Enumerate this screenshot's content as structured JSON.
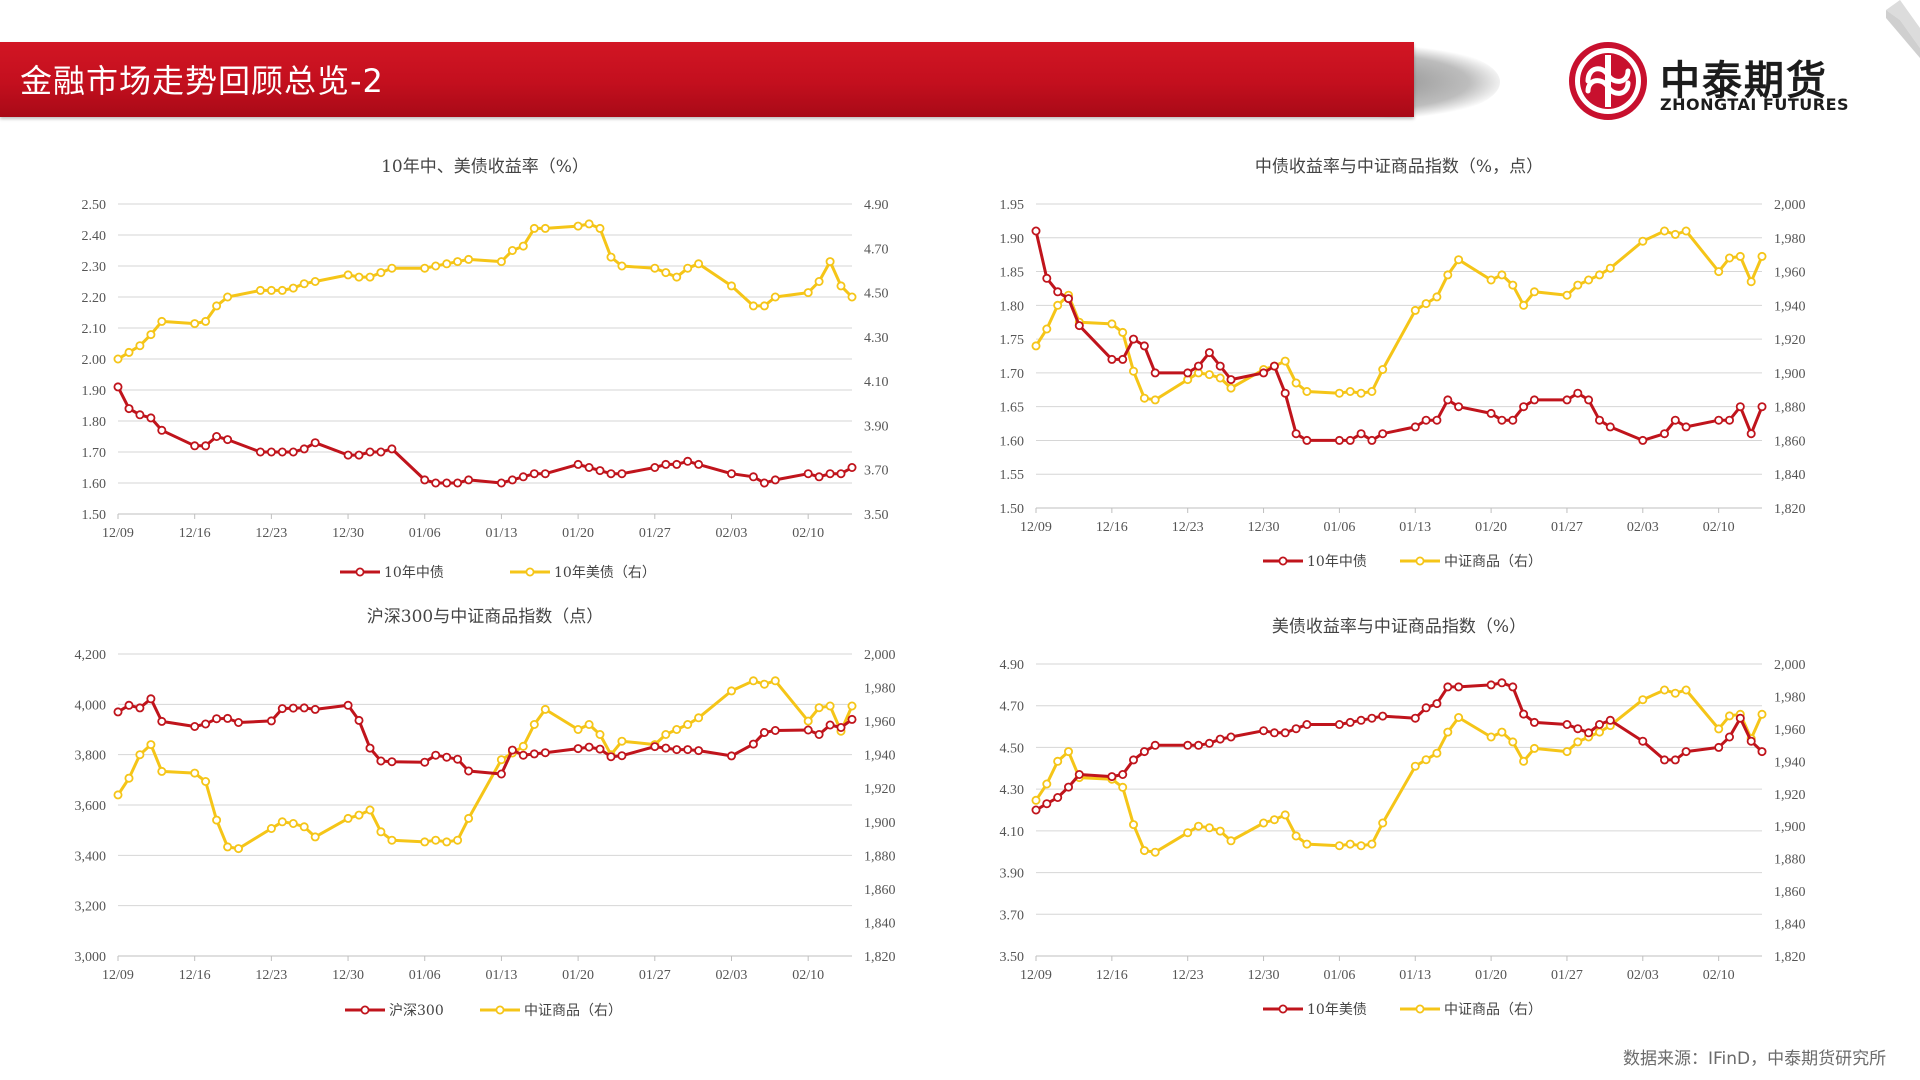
{
  "header": {
    "title": "金融市场走势回顾总览-2"
  },
  "logo": {
    "name_cn": "中泰期货",
    "name_en": "ZHONGTAI FUTURES"
  },
  "source_note": "数据来源：IFinD，中泰期货研究所",
  "colors": {
    "red_series": "#c0141c",
    "yellow_series": "#f5c518",
    "header_red": "#c8101e",
    "logo_red": "#c8102e"
  },
  "chart_data": [
    {
      "type": "line",
      "title": "10年中、美债收益率（%）",
      "x_tick_labels": [
        "12/09",
        "12/16",
        "12/23",
        "12/30",
        "01/06",
        "01/13",
        "01/20",
        "01/27",
        "02/03",
        "02/10"
      ],
      "left_axis": {
        "ylim": [
          1.5,
          2.5
        ],
        "tick_labels": [
          "1.50",
          "1.60",
          "1.70",
          "1.80",
          "1.90",
          "2.00",
          "2.10",
          "2.20",
          "2.30",
          "2.40",
          "2.50"
        ]
      },
      "right_axis": {
        "ylim": [
          3.5,
          4.9
        ],
        "tick_labels": [
          "3.50",
          "3.70",
          "3.90",
          "4.10",
          "4.30",
          "4.50",
          "4.70",
          "4.90"
        ]
      },
      "series": [
        {
          "name": "10年中债",
          "axis": "left",
          "x": [
            0,
            1,
            2,
            3,
            4,
            7,
            8,
            9,
            10,
            13,
            14,
            15,
            16,
            17,
            18,
            21,
            22,
            23,
            24,
            25,
            28,
            29,
            30,
            31,
            32,
            35,
            36,
            37,
            38,
            39,
            42,
            43,
            44,
            45,
            46,
            49,
            50,
            51,
            52,
            53,
            56,
            58,
            59,
            60,
            63,
            64,
            65,
            66,
            67
          ],
          "values": [
            1.91,
            1.84,
            1.82,
            1.81,
            1.77,
            1.72,
            1.72,
            1.75,
            1.74,
            1.7,
            1.7,
            1.7,
            1.7,
            1.71,
            1.73,
            1.69,
            1.69,
            1.7,
            1.7,
            1.71,
            1.61,
            1.6,
            1.6,
            1.6,
            1.61,
            1.6,
            1.61,
            1.62,
            1.63,
            1.63,
            1.66,
            1.65,
            1.64,
            1.63,
            1.63,
            1.65,
            1.66,
            1.66,
            1.67,
            1.66,
            1.63,
            1.62,
            1.6,
            1.61,
            1.63,
            1.62,
            1.63,
            1.63,
            1.65
          ]
        },
        {
          "name": "10年美债（右）",
          "axis": "right",
          "x": [
            0,
            1,
            2,
            3,
            4,
            7,
            8,
            9,
            10,
            13,
            14,
            15,
            16,
            17,
            18,
            21,
            22,
            23,
            24,
            25,
            28,
            29,
            30,
            31,
            32,
            35,
            36,
            37,
            38,
            39,
            42,
            43,
            44,
            45,
            46,
            49,
            50,
            51,
            52,
            53,
            56,
            58,
            59,
            60,
            63,
            64,
            65,
            66,
            67
          ],
          "values": [
            4.2,
            4.23,
            4.26,
            4.31,
            4.37,
            4.36,
            4.37,
            4.44,
            4.48,
            4.51,
            4.51,
            4.51,
            4.52,
            4.54,
            4.55,
            4.58,
            4.57,
            4.57,
            4.59,
            4.61,
            4.61,
            4.62,
            4.63,
            4.64,
            4.65,
            4.64,
            4.69,
            4.71,
            4.79,
            4.79,
            4.8,
            4.81,
            4.79,
            4.66,
            4.62,
            4.61,
            4.59,
            4.57,
            4.61,
            4.63,
            4.53,
            4.44,
            4.44,
            4.48,
            4.5,
            4.55,
            4.64,
            4.53,
            4.48
          ]
        }
      ]
    },
    {
      "type": "line",
      "title": "中债收益率与中证商品指数（%，点）",
      "x_tick_labels": [
        "12/09",
        "12/16",
        "12/23",
        "12/30",
        "01/06",
        "01/13",
        "01/20",
        "01/27",
        "02/03",
        "02/10"
      ],
      "left_axis": {
        "ylim": [
          1.5,
          1.95
        ],
        "tick_labels": [
          "1.50",
          "1.55",
          "1.60",
          "1.65",
          "1.70",
          "1.75",
          "1.80",
          "1.85",
          "1.90",
          "1.95"
        ]
      },
      "right_axis": {
        "ylim": [
          1820,
          2000
        ],
        "tick_labels": [
          "1,820",
          "1,840",
          "1,860",
          "1,880",
          "1,900",
          "1,920",
          "1,940",
          "1,960",
          "1,980",
          "2,000"
        ]
      },
      "series": [
        {
          "name": "10年中债",
          "axis": "left",
          "x": [
            0,
            1,
            2,
            3,
            4,
            7,
            8,
            9,
            10,
            11,
            14,
            15,
            16,
            17,
            18,
            21,
            22,
            23,
            24,
            25,
            28,
            29,
            30,
            31,
            32,
            35,
            36,
            37,
            38,
            39,
            42,
            43,
            44,
            45,
            46,
            49,
            50,
            51,
            52,
            53,
            56,
            58,
            59,
            60,
            63,
            64,
            65,
            66,
            67
          ],
          "values": [
            1.91,
            1.84,
            1.82,
            1.81,
            1.77,
            1.72,
            1.72,
            1.75,
            1.74,
            1.7,
            1.7,
            1.71,
            1.73,
            1.71,
            1.69,
            1.7,
            1.71,
            1.67,
            1.61,
            1.6,
            1.6,
            1.6,
            1.61,
            1.6,
            1.61,
            1.62,
            1.63,
            1.63,
            1.66,
            1.65,
            1.64,
            1.63,
            1.63,
            1.65,
            1.66,
            1.66,
            1.67,
            1.66,
            1.63,
            1.62,
            1.6,
            1.61,
            1.63,
            1.62,
            1.63,
            1.63,
            1.65,
            1.61,
            1.65
          ]
        },
        {
          "name": "中证商品（右）",
          "axis": "right",
          "x": [
            0,
            1,
            2,
            3,
            4,
            7,
            8,
            9,
            10,
            11,
            14,
            15,
            16,
            17,
            18,
            21,
            22,
            23,
            24,
            25,
            28,
            29,
            30,
            31,
            32,
            35,
            36,
            37,
            38,
            39,
            42,
            43,
            44,
            45,
            46,
            49,
            50,
            51,
            52,
            53,
            56,
            58,
            59,
            60,
            63,
            64,
            65,
            66,
            67
          ],
          "values": [
            1916,
            1926,
            1940,
            1946,
            1930,
            1929,
            1924,
            1901,
            1885,
            1884,
            1896,
            1900,
            1899,
            1897,
            1891,
            1902,
            1904,
            1907,
            1894,
            1889,
            1888,
            1889,
            1888,
            1889,
            1902,
            1937,
            1941,
            1945,
            1958,
            1967,
            1955,
            1958,
            1952,
            1940,
            1948,
            1946,
            1952,
            1955,
            1958,
            1962,
            1978,
            1984,
            1982,
            1984,
            1960,
            1968,
            1969,
            1954,
            1969
          ]
        }
      ]
    },
    {
      "type": "line",
      "title": "沪深300与中证商品指数（点）",
      "x_tick_labels": [
        "12/09",
        "12/16",
        "12/23",
        "12/30",
        "01/06",
        "01/13",
        "01/20",
        "01/27",
        "02/03",
        "02/10"
      ],
      "left_axis": {
        "ylim": [
          3000,
          4200
        ],
        "tick_labels": [
          "3,000",
          "3,200",
          "3,400",
          "3,600",
          "3,800",
          "4,000",
          "4,200"
        ]
      },
      "right_axis": {
        "ylim": [
          1820,
          2000
        ],
        "tick_labels": [
          "1,820",
          "1,840",
          "1,860",
          "1,880",
          "1,900",
          "1,920",
          "1,940",
          "1,960",
          "1,980",
          "2,000"
        ]
      },
      "series": [
        {
          "name": "沪深300",
          "axis": "left",
          "x": [
            0,
            1,
            2,
            3,
            4,
            7,
            8,
            9,
            10,
            11,
            14,
            15,
            16,
            17,
            18,
            21,
            22,
            23,
            24,
            25,
            28,
            29,
            30,
            31,
            32,
            35,
            36,
            37,
            38,
            39,
            42,
            43,
            44,
            45,
            46,
            49,
            50,
            51,
            52,
            53,
            56,
            58,
            59,
            60,
            63,
            64,
            65,
            66,
            67
          ],
          "values": [
            3970,
            3996,
            3986,
            4022,
            3932,
            3912,
            3922,
            3943,
            3944,
            3928,
            3934,
            3983,
            3985,
            3986,
            3980,
            3996,
            3936,
            3826,
            3775,
            3772,
            3770,
            3798,
            3790,
            3782,
            3735,
            3723,
            3818,
            3798,
            3803,
            3808,
            3824,
            3830,
            3822,
            3792,
            3796,
            3832,
            3826,
            3820,
            3820,
            3816,
            3795,
            3842,
            3888,
            3896,
            3898,
            3880,
            3918,
            3908,
            3940
          ]
        },
        {
          "name": "中证商品（右）",
          "axis": "right",
          "x": [
            0,
            1,
            2,
            3,
            4,
            7,
            8,
            9,
            10,
            11,
            14,
            15,
            16,
            17,
            18,
            21,
            22,
            23,
            24,
            25,
            28,
            29,
            30,
            31,
            32,
            35,
            36,
            37,
            38,
            39,
            42,
            43,
            44,
            45,
            46,
            49,
            50,
            51,
            52,
            53,
            56,
            58,
            59,
            60,
            63,
            64,
            65,
            66,
            67
          ],
          "values": [
            1916,
            1926,
            1940,
            1946,
            1930,
            1929,
            1924,
            1901,
            1885,
            1884,
            1896,
            1900,
            1899,
            1897,
            1891,
            1902,
            1904,
            1907,
            1894,
            1889,
            1888,
            1889,
            1888,
            1889,
            1902,
            1937,
            1941,
            1945,
            1958,
            1967,
            1955,
            1958,
            1952,
            1940,
            1948,
            1946,
            1952,
            1955,
            1958,
            1962,
            1978,
            1984,
            1982,
            1984,
            1960,
            1968,
            1969,
            1954,
            1969
          ]
        }
      ]
    },
    {
      "type": "line",
      "title": "美债收益率与中证商品指数（%）",
      "x_tick_labels": [
        "12/09",
        "12/16",
        "12/23",
        "12/30",
        "01/06",
        "01/13",
        "01/20",
        "01/27",
        "02/03",
        "02/10"
      ],
      "left_axis": {
        "ylim": [
          3.5,
          4.9
        ],
        "tick_labels": [
          "3.50",
          "3.70",
          "3.90",
          "4.10",
          "4.30",
          "4.50",
          "4.70",
          "4.90"
        ]
      },
      "right_axis": {
        "ylim": [
          1820,
          2000
        ],
        "tick_labels": [
          "1,820",
          "1,840",
          "1,860",
          "1,880",
          "1,900",
          "1,920",
          "1,940",
          "1,960",
          "1,980",
          "2,000"
        ]
      },
      "series": [
        {
          "name": "10年美债",
          "axis": "left",
          "x": [
            0,
            1,
            2,
            3,
            4,
            7,
            8,
            9,
            10,
            11,
            14,
            15,
            16,
            17,
            18,
            21,
            22,
            23,
            24,
            25,
            28,
            29,
            30,
            31,
            32,
            35,
            36,
            37,
            38,
            39,
            42,
            43,
            44,
            45,
            46,
            49,
            50,
            51,
            52,
            53,
            56,
            58,
            59,
            60,
            63,
            64,
            65,
            66,
            67
          ],
          "values": [
            4.2,
            4.23,
            4.26,
            4.31,
            4.37,
            4.36,
            4.37,
            4.44,
            4.48,
            4.51,
            4.51,
            4.51,
            4.52,
            4.54,
            4.55,
            4.58,
            4.57,
            4.57,
            4.59,
            4.61,
            4.61,
            4.62,
            4.63,
            4.64,
            4.65,
            4.64,
            4.69,
            4.71,
            4.79,
            4.79,
            4.8,
            4.81,
            4.79,
            4.66,
            4.62,
            4.61,
            4.59,
            4.57,
            4.61,
            4.63,
            4.53,
            4.44,
            4.44,
            4.48,
            4.5,
            4.55,
            4.64,
            4.53,
            4.48
          ]
        },
        {
          "name": "中证商品（右）",
          "axis": "right",
          "x": [
            0,
            1,
            2,
            3,
            4,
            7,
            8,
            9,
            10,
            11,
            14,
            15,
            16,
            17,
            18,
            21,
            22,
            23,
            24,
            25,
            28,
            29,
            30,
            31,
            32,
            35,
            36,
            37,
            38,
            39,
            42,
            43,
            44,
            45,
            46,
            49,
            50,
            51,
            52,
            53,
            56,
            58,
            59,
            60,
            63,
            64,
            65,
            66,
            67
          ],
          "values": [
            1916,
            1926,
            1940,
            1946,
            1930,
            1929,
            1924,
            1901,
            1885,
            1884,
            1896,
            1900,
            1899,
            1897,
            1891,
            1902,
            1904,
            1907,
            1894,
            1889,
            1888,
            1889,
            1888,
            1889,
            1902,
            1937,
            1941,
            1945,
            1958,
            1967,
            1955,
            1958,
            1952,
            1940,
            1948,
            1946,
            1952,
            1955,
            1958,
            1962,
            1978,
            1984,
            1982,
            1984,
            1960,
            1968,
            1969,
            1954,
            1969
          ]
        }
      ]
    }
  ]
}
